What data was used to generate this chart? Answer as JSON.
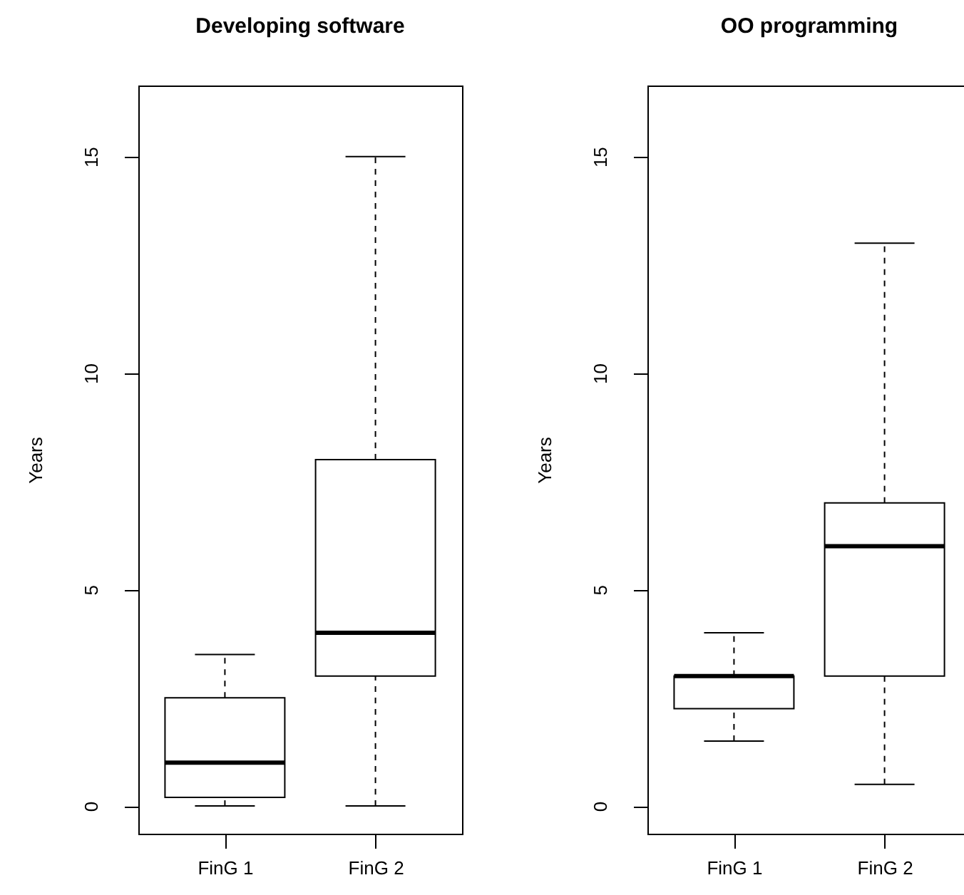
{
  "chart_data": [
    {
      "type": "box",
      "title": "Developing software",
      "ylabel": "Years",
      "categories": [
        "FinG 1",
        "FinG 2"
      ],
      "boxes": [
        {
          "low": 0,
          "q1": 0.2,
          "median": 1,
          "q3": 2.5,
          "high": 3.5
        },
        {
          "low": 0,
          "q1": 3,
          "median": 4,
          "q3": 8,
          "high": 15
        }
      ],
      "ylim": [
        -0.64,
        16.64
      ],
      "yticks": [
        0,
        5,
        10,
        15
      ]
    },
    {
      "type": "box",
      "title": "OO programming",
      "ylabel": "Years",
      "categories": [
        "FinG 1",
        "FinG 2"
      ],
      "boxes": [
        {
          "low": 1.5,
          "q1": 2.25,
          "median": 3,
          "q3": 3,
          "high": 4
        },
        {
          "low": 0.5,
          "q1": 3,
          "median": 6,
          "q3": 7,
          "high": 13
        }
      ],
      "ylim": [
        -0.64,
        16.64
      ],
      "yticks": [
        0,
        5,
        10,
        15
      ]
    }
  ]
}
